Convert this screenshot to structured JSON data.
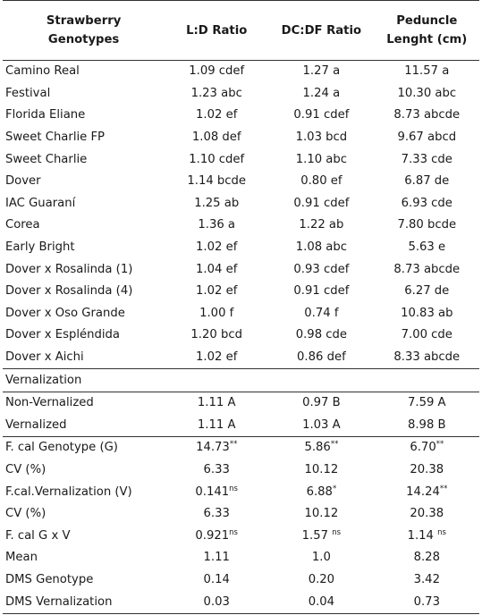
{
  "headers": {
    "col0_line1": "Strawberry",
    "col0_line2": "Genotypes",
    "col1": "L:D Ratio",
    "col2": "DC:DF Ratio",
    "col3_line1": "Peduncle",
    "col3_line2": "Lenght (cm)"
  },
  "genotypes": [
    {
      "name": "Camino Real",
      "ld": "1.09 cdef",
      "dc": "1.27 a",
      "ped": "11.57 a"
    },
    {
      "name": "Festival",
      "ld": "1.23 abc",
      "dc": "1.24 a",
      "ped": "10.30 abc"
    },
    {
      "name": "Florida Eliane",
      "ld": "1.02 ef",
      "dc": "0.91 cdef",
      "ped": "8.73 abcde"
    },
    {
      "name": "Sweet Charlie FP",
      "ld": "1.08 def",
      "dc": "1.03 bcd",
      "ped": "9.67 abcd"
    },
    {
      "name": "Sweet Charlie",
      "ld": "1.10 cdef",
      "dc": "1.10 abc",
      "ped": "7.33 cde"
    },
    {
      "name": "Dover",
      "ld": "1.14  bcde",
      "dc": "0.80 ef",
      "ped": "6.87 de"
    },
    {
      "name": "IAC Guaraní",
      "ld": "1.25 ab",
      "dc": "0.91 cdef",
      "ped": "6.93 cde"
    },
    {
      "name": "Corea",
      "ld": "1.36 a",
      "dc": "1.22 ab",
      "ped": "7.80 bcde"
    },
    {
      "name": "Early Bright",
      "ld": "1.02 ef",
      "dc": "1.08 abc",
      "ped": "5.63 e"
    },
    {
      "name": "Dover x Rosalinda (1)",
      "ld": "1.04 ef",
      "dc": "0.93 cdef",
      "ped": "8.73 abcde"
    },
    {
      "name": "Dover x Rosalinda (4)",
      "ld": "1.02 ef",
      "dc": "0.91 cdef",
      "ped": "6.27 de"
    },
    {
      "name": "Dover x Oso Grande",
      "ld": "1.00 f",
      "dc": "0.74 f",
      "ped": "10.83 ab"
    },
    {
      "name": "Dover x Espléndida",
      "ld": "1.20 bcd",
      "dc": "0.98 cde",
      "ped": "7.00 cde"
    },
    {
      "name": "Dover x Aichi",
      "ld": "1.02 ef",
      "dc": "0.86 def",
      "ped": "8.33 abcde"
    }
  ],
  "vernalization_label": "Vernalization",
  "vernalization": [
    {
      "name": "Non-Vernalized",
      "ld": "1.11 A",
      "dc": "0.97 B",
      "ped": "7.59 A"
    },
    {
      "name": "Vernalized",
      "ld": "1.11 A",
      "dc": "1.03 A",
      "ped": "8.98 B"
    }
  ],
  "stats": [
    {
      "name": "F. cal Genotype (G)",
      "ld": "14.73",
      "ld_sup": "**",
      "dc": "5.86",
      "dc_sup": "**",
      "ped": "6.70",
      "ped_sup": "**"
    },
    {
      "name": "CV (%)",
      "ld": "6.33",
      "ld_sup": "",
      "dc": "10.12",
      "dc_sup": "",
      "ped": "20.38",
      "ped_sup": ""
    },
    {
      "name": "F.cal.Vernalization (V)",
      "ld": "0.141",
      "ld_sup": "ns",
      "dc": "6.88",
      "dc_sup": "*",
      "ped": "14.24",
      "ped_sup": "**"
    },
    {
      "name": "CV (%)",
      "ld": "6.33",
      "ld_sup": "",
      "dc": "10.12",
      "dc_sup": "",
      "ped": "20.38",
      "ped_sup": ""
    },
    {
      "name": "F. cal G x V",
      "ld": "0.921",
      "ld_sup": "ns",
      "dc": "1.57 ",
      "dc_sup": "ns",
      "ped": "1.14 ",
      "ped_sup": "ns"
    },
    {
      "name": "Mean",
      "ld": "1.11",
      "ld_sup": "",
      "dc": "1.0",
      "dc_sup": "",
      "ped": "8.28",
      "ped_sup": ""
    },
    {
      "name": "DMS Genotype",
      "ld": "0.14",
      "ld_sup": "",
      "dc": "0.20",
      "dc_sup": "",
      "ped": "3.42",
      "ped_sup": ""
    },
    {
      "name": "DMS Vernalization",
      "ld": "0.03",
      "ld_sup": "",
      "dc": "0.04",
      "dc_sup": "",
      "ped": "0.73",
      "ped_sup": ""
    }
  ]
}
